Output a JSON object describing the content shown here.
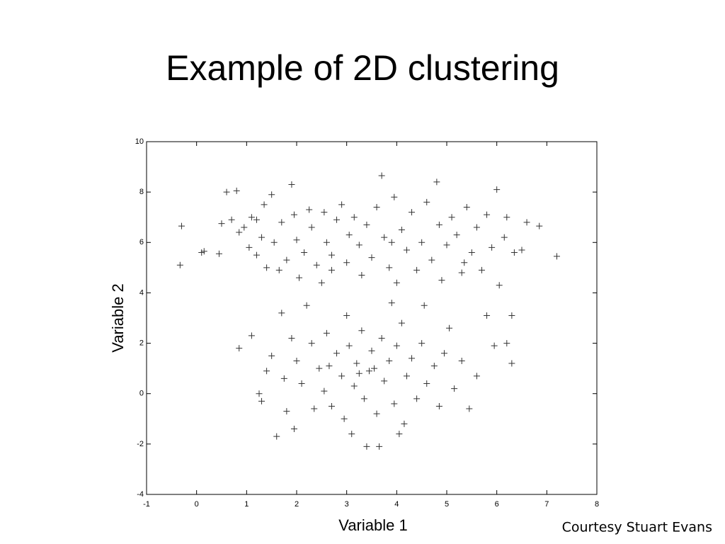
{
  "chart_data": {
    "type": "scatter",
    "title": "Example of 2D clustering",
    "xlabel": "Variable 1",
    "ylabel": "Variable 2",
    "annotation": "Courtesy Stuart Evans",
    "color": "#333333",
    "xlim": [
      -1,
      8
    ],
    "xticks": [
      -1,
      0,
      1,
      2,
      3,
      4,
      5,
      6,
      7,
      8
    ],
    "ylim": [
      -4,
      10
    ],
    "yticks": [
      -4,
      -2,
      0,
      2,
      4,
      6,
      8,
      10
    ],
    "x": [
      -0.3,
      -0.33,
      0.1,
      0.15,
      0.6,
      0.8,
      0.45,
      0.5,
      0.7,
      0.85,
      0.95,
      1.05,
      1.1,
      1.2,
      1.3,
      1.35,
      1.4,
      1.5,
      1.55,
      1.65,
      1.7,
      1.8,
      1.9,
      1.95,
      2,
      2.05,
      2.15,
      2.25,
      2.3,
      2.4,
      2.5,
      2.55,
      2.6,
      2.7,
      2.8,
      2.9,
      3,
      3.05,
      3.15,
      3.25,
      3.3,
      3.4,
      3.5,
      3.6,
      3.7,
      3.75,
      3.85,
      3.95,
      4,
      4.1,
      4.2,
      4.3,
      4.4,
      4.5,
      4.6,
      4.7,
      4.8,
      4.85,
      4.9,
      5,
      5.1,
      5.2,
      5.3,
      5.4,
      5.5,
      5.6,
      5.7,
      5.8,
      5.9,
      6,
      6.05,
      6.15,
      6.2,
      6.35,
      6.5,
      6.6,
      6.85,
      7.2,
      1.2,
      2.7,
      3.9,
      5.35,
      0.85,
      1.1,
      1.25,
      1.3,
      1.4,
      1.5,
      1.6,
      1.7,
      1.75,
      1.8,
      1.9,
      1.95,
      2,
      2.1,
      2.2,
      2.3,
      2.35,
      2.45,
      2.55,
      2.6,
      2.7,
      2.8,
      2.9,
      2.95,
      3,
      3.05,
      3.1,
      3.15,
      3.2,
      3.3,
      3.35,
      3.4,
      3.45,
      3.5,
      3.6,
      3.65,
      3.7,
      3.75,
      3.85,
      3.9,
      3.95,
      4,
      4.05,
      4.1,
      4.15,
      4.2,
      4.3,
      4.4,
      4.5,
      4.55,
      4.6,
      4.75,
      4.85,
      4.95,
      5.05,
      5.15,
      5.3,
      5.45,
      5.6,
      5.8,
      5.95,
      6.2,
      6.3,
      6.3,
      2.65,
      3.25,
      3.55
    ],
    "values": [
      6.65,
      5.1,
      5.6,
      5.65,
      8,
      8.05,
      5.55,
      6.75,
      6.9,
      6.4,
      6.6,
      5.8,
      7,
      5.5,
      6.2,
      7.5,
      5,
      7.9,
      6,
      4.9,
      6.8,
      5.3,
      8.3,
      7.1,
      6.1,
      4.6,
      5.6,
      7.3,
      6.6,
      5.1,
      4.4,
      7.2,
      6,
      5.5,
      6.9,
      7.5,
      5.2,
      6.3,
      7,
      5.9,
      4.7,
      6.7,
      5.4,
      7.4,
      8.65,
      6.2,
      5,
      7.8,
      4.4,
      6.5,
      5.7,
      7.2,
      4.9,
      6,
      7.6,
      5.3,
      8.4,
      6.7,
      4.5,
      5.9,
      7,
      6.3,
      4.8,
      7.4,
      5.6,
      6.6,
      4.9,
      7.1,
      5.8,
      8.1,
      4.3,
      6.2,
      7,
      5.6,
      5.7,
      6.8,
      6.65,
      5.45,
      6.9,
      4.9,
      6,
      5.2,
      1.8,
      2.3,
      0,
      -0.3,
      0.9,
      1.5,
      -1.7,
      3.2,
      0.6,
      -0.7,
      2.2,
      -1.4,
      1.3,
      0.4,
      3.5,
      2,
      -0.6,
      1,
      0.1,
      2.4,
      -0.5,
      1.6,
      0.7,
      -1,
      3.1,
      1.9,
      -1.6,
      0.3,
      1.2,
      2.5,
      -0.2,
      -2.1,
      0.9,
      1.7,
      -0.8,
      -2.1,
      2.2,
      0.5,
      1.3,
      3.6,
      -0.4,
      1.9,
      -1.6,
      2.8,
      -1.2,
      0.7,
      1.4,
      -0.2,
      2,
      3.5,
      0.4,
      1.1,
      -0.5,
      1.6,
      2.6,
      0.2,
      1.3,
      -0.6,
      0.7,
      3.1,
      1.9,
      2,
      3.1,
      1.2,
      1.1,
      0.8,
      1
    ]
  }
}
